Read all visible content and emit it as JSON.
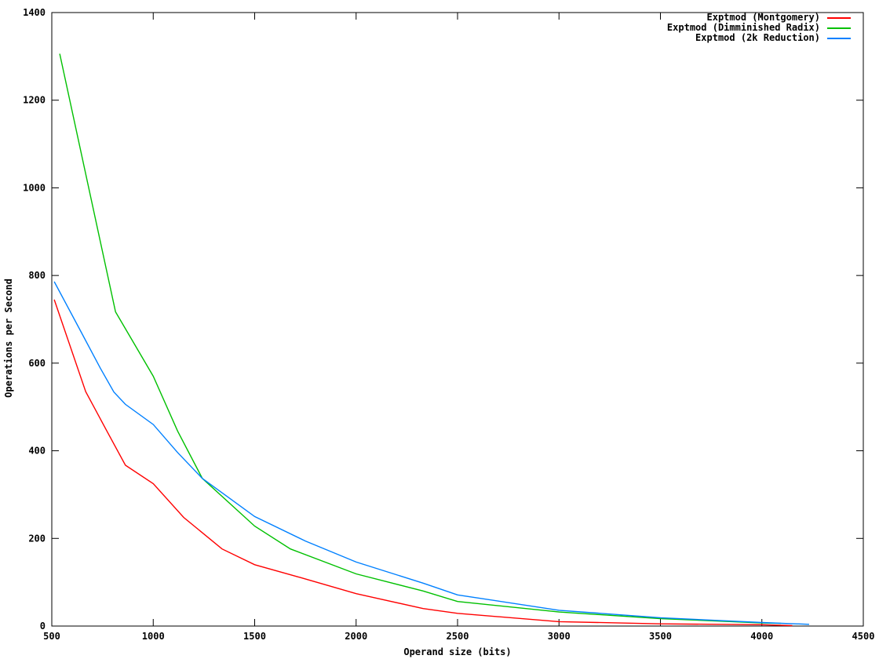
{
  "chart_data": {
    "type": "line",
    "title": "",
    "xlabel": "Operand size (bits)",
    "ylabel": "Operations per Second",
    "xlim": [
      500,
      4500
    ],
    "ylim": [
      0,
      1400
    ],
    "xticks": [
      500,
      1000,
      1500,
      2000,
      2500,
      3000,
      3500,
      4000,
      4500
    ],
    "yticks": [
      0,
      200,
      400,
      600,
      800,
      1000,
      1200,
      1400
    ],
    "grid": false,
    "tick_style": "inward-mirrored",
    "legend_position": "top-right-inside",
    "background_color": "#ffffff",
    "axis_color": "#000000",
    "series": [
      {
        "name": "Exptmod (Montgomery)",
        "color": "#ff0000",
        "points": [
          [
            512,
            745
          ],
          [
            667,
            535
          ],
          [
            768,
            448
          ],
          [
            863,
            367
          ],
          [
            1000,
            325
          ],
          [
            1150,
            248
          ],
          [
            1339,
            176
          ],
          [
            1500,
            140
          ],
          [
            1715,
            112
          ],
          [
            2000,
            74
          ],
          [
            2330,
            40
          ],
          [
            2500,
            29
          ],
          [
            3000,
            10
          ],
          [
            3500,
            5
          ],
          [
            4000,
            3
          ],
          [
            4150,
            1
          ]
        ]
      },
      {
        "name": "Exptmod (Dimminished Radix)",
        "color": "#00c000",
        "points": [
          [
            539,
            1306
          ],
          [
            814,
            717
          ],
          [
            1000,
            570
          ],
          [
            1120,
            445
          ],
          [
            1242,
            337
          ],
          [
            1500,
            228
          ],
          [
            1676,
            176
          ],
          [
            2000,
            119
          ],
          [
            2330,
            80
          ],
          [
            2500,
            56
          ],
          [
            3000,
            32
          ],
          [
            3500,
            17
          ],
          [
            4000,
            7
          ],
          [
            4094,
            6
          ]
        ]
      },
      {
        "name": "Exptmod (2k Reduction)",
        "color": "#0080ff",
        "points": [
          [
            512,
            786
          ],
          [
            640,
            675
          ],
          [
            740,
            588
          ],
          [
            806,
            534
          ],
          [
            863,
            506
          ],
          [
            1000,
            460
          ],
          [
            1120,
            396
          ],
          [
            1242,
            337
          ],
          [
            1500,
            250
          ],
          [
            1750,
            194
          ],
          [
            2000,
            146
          ],
          [
            2330,
            98
          ],
          [
            2500,
            71
          ],
          [
            3000,
            36
          ],
          [
            3500,
            19
          ],
          [
            4000,
            8
          ],
          [
            4233,
            4
          ]
        ]
      }
    ]
  }
}
